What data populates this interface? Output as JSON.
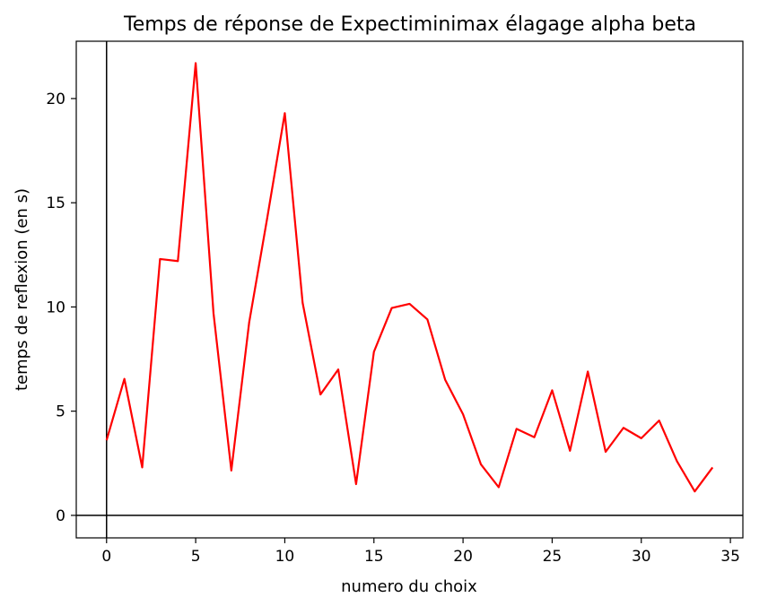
{
  "chart_data": {
    "type": "line",
    "title": "Temps de réponse de Expectiminimax élagage alpha beta",
    "xlabel": "numero du choix",
    "ylabel": "temps de reflexion (en s)",
    "xlim": [
      -1.7,
      35.7
    ],
    "ylim": [
      -1.08,
      22.75
    ],
    "xticks": [
      0,
      5,
      10,
      15,
      20,
      25,
      30,
      35
    ],
    "yticks": [
      0,
      5,
      10,
      15,
      20
    ],
    "grid": false,
    "reference_lines": {
      "x": 0,
      "y": 0
    },
    "series": [
      {
        "color": "#ff0000",
        "x": [
          0,
          1,
          2,
          3,
          4,
          5,
          6,
          7,
          8,
          9,
          10,
          11,
          12,
          13,
          14,
          15,
          16,
          17,
          18,
          19,
          20,
          21,
          22,
          23,
          24,
          25,
          26,
          27,
          28,
          29,
          30,
          31,
          32,
          33,
          34
        ],
        "y": [
          3.6,
          6.55,
          2.3,
          12.3,
          12.2,
          21.7,
          9.7,
          2.15,
          9.25,
          14.2,
          19.3,
          10.2,
          5.8,
          7.0,
          1.5,
          7.85,
          9.95,
          10.15,
          9.4,
          6.5,
          4.85,
          2.45,
          1.35,
          4.15,
          3.75,
          6.0,
          3.1,
          6.9,
          3.05,
          4.2,
          3.7,
          4.55,
          2.6,
          1.15,
          2.3
        ]
      }
    ]
  }
}
